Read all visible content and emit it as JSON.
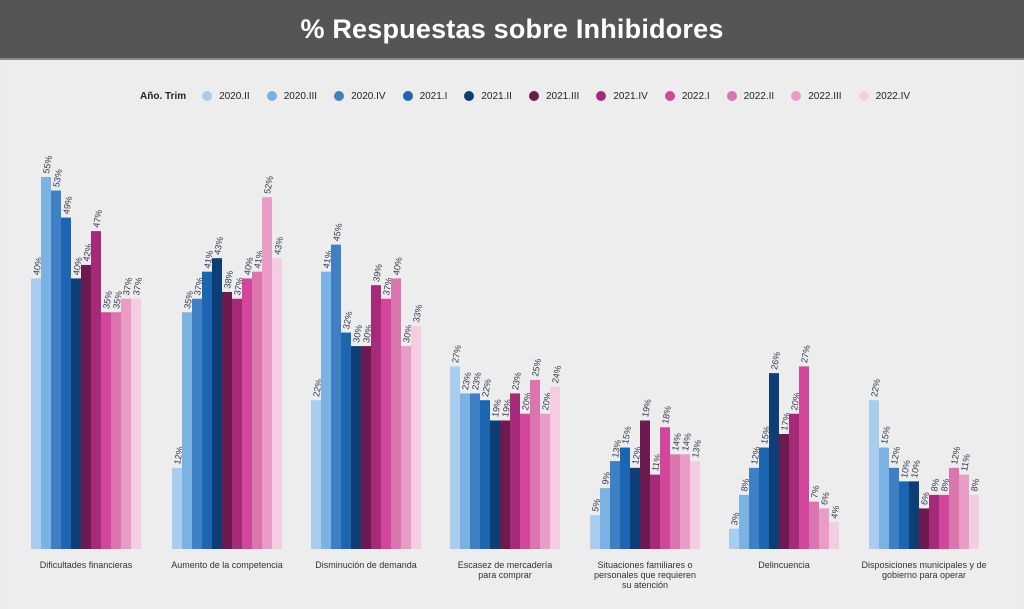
{
  "header": {
    "title": "% Respuestas sobre Inhibidores"
  },
  "chart_data": {
    "type": "bar",
    "title": "% Respuestas sobre Inhibidores",
    "legend_title": "Año. Trim",
    "legend_position": "top",
    "xlabel": "",
    "ylabel": "",
    "ylim": [
      0,
      60
    ],
    "grid": false,
    "value_suffix": "%",
    "categories": [
      [
        "Dificultades financieras"
      ],
      [
        "Aumento de la competencia"
      ],
      [
        "Disminución de demanda"
      ],
      [
        "Escasez de mercadería",
        "para comprar"
      ],
      [
        "Situaciones familiares o",
        "personales que requieren",
        "su atención"
      ],
      [
        "Delincuencia"
      ],
      [
        "Disposiciones municipales y de",
        "gobierno para operar"
      ]
    ],
    "series": [
      {
        "name": "2020.II",
        "color": "#a9cdee",
        "values": [
          40,
          12,
          22,
          27,
          5,
          3,
          22
        ]
      },
      {
        "name": "2020.III",
        "color": "#7ab3e3",
        "values": [
          55,
          35,
          41,
          23,
          9,
          8,
          15
        ]
      },
      {
        "name": "2020.IV",
        "color": "#3f7fc4",
        "values": [
          53,
          37,
          45,
          23,
          13,
          12,
          12
        ]
      },
      {
        "name": "2021.I",
        "color": "#1c65b0",
        "values": [
          49,
          41,
          32,
          22,
          15,
          15,
          10
        ]
      },
      {
        "name": "2021.II",
        "color": "#0d3f76",
        "values": [
          40,
          43,
          30,
          19,
          12,
          26,
          10
        ]
      },
      {
        "name": "2021.III",
        "color": "#6c1a4f",
        "values": [
          42,
          38,
          30,
          19,
          19,
          17,
          6
        ]
      },
      {
        "name": "2021.IV",
        "color": "#a52a78",
        "values": [
          47,
          37,
          39,
          23,
          11,
          20,
          8
        ]
      },
      {
        "name": "2022.I",
        "color": "#d2479b",
        "values": [
          35,
          40,
          37,
          20,
          18,
          27,
          8
        ]
      },
      {
        "name": "2022.II",
        "color": "#da76ad",
        "values": [
          35,
          41,
          40,
          25,
          14,
          7,
          12
        ]
      },
      {
        "name": "2022.III",
        "color": "#e99cc6",
        "values": [
          37,
          52,
          30,
          20,
          14,
          6,
          11
        ]
      },
      {
        "name": "2022.IV",
        "color": "#f4cde3",
        "values": [
          37,
          43,
          33,
          24,
          13,
          4,
          8
        ]
      }
    ]
  }
}
